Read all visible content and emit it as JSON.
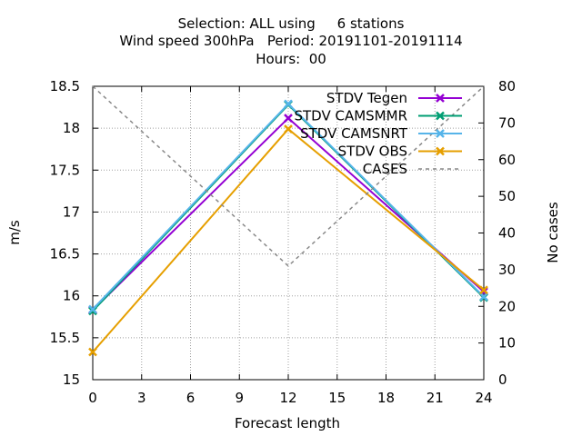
{
  "chart_data": {
    "type": "line",
    "title_lines": [
      "Selection: ALL using     6 stations",
      "Wind speed 300hPa   Period: 20191101-20191114",
      "Hours:  00"
    ],
    "xlabel": "Forecast length",
    "ylabel": "m/s",
    "y2label": "No cases",
    "x": [
      0,
      12,
      24
    ],
    "xticks": [
      0,
      3,
      6,
      9,
      12,
      15,
      18,
      21,
      24
    ],
    "xlim": [
      0,
      24
    ],
    "yticks": [
      "15",
      "15.5",
      "16",
      "16.5",
      "17",
      "17.5",
      "18",
      "18.5"
    ],
    "ylim": [
      15,
      18.5
    ],
    "y2ticks": [
      0,
      10,
      20,
      30,
      40,
      50,
      60,
      70,
      80
    ],
    "y2lim": [
      0,
      80
    ],
    "grid": true,
    "legend_position": "top-right",
    "series": [
      {
        "name": "STDV Tegen",
        "axis": "y1",
        "values": [
          15.83,
          18.12,
          16.05
        ],
        "color": "#9400d3",
        "marker": "x",
        "dash": false
      },
      {
        "name": "STDV CAMSMMR",
        "axis": "y1",
        "values": [
          15.82,
          18.28,
          15.98
        ],
        "color": "#009e73",
        "marker": "x",
        "dash": false
      },
      {
        "name": "STDV CAMSNRT",
        "axis": "y1",
        "values": [
          15.84,
          18.29,
          15.99
        ],
        "color": "#56b4e9",
        "marker": "x",
        "dash": false
      },
      {
        "name": "STDV OBS",
        "axis": "y1",
        "values": [
          15.33,
          17.99,
          16.07
        ],
        "color": "#e69f00",
        "marker": "x",
        "dash": false
      },
      {
        "name": "CASES",
        "axis": "y2",
        "values": [
          80,
          31,
          80
        ],
        "color": "#888888",
        "marker": "none",
        "dash": true
      }
    ]
  }
}
